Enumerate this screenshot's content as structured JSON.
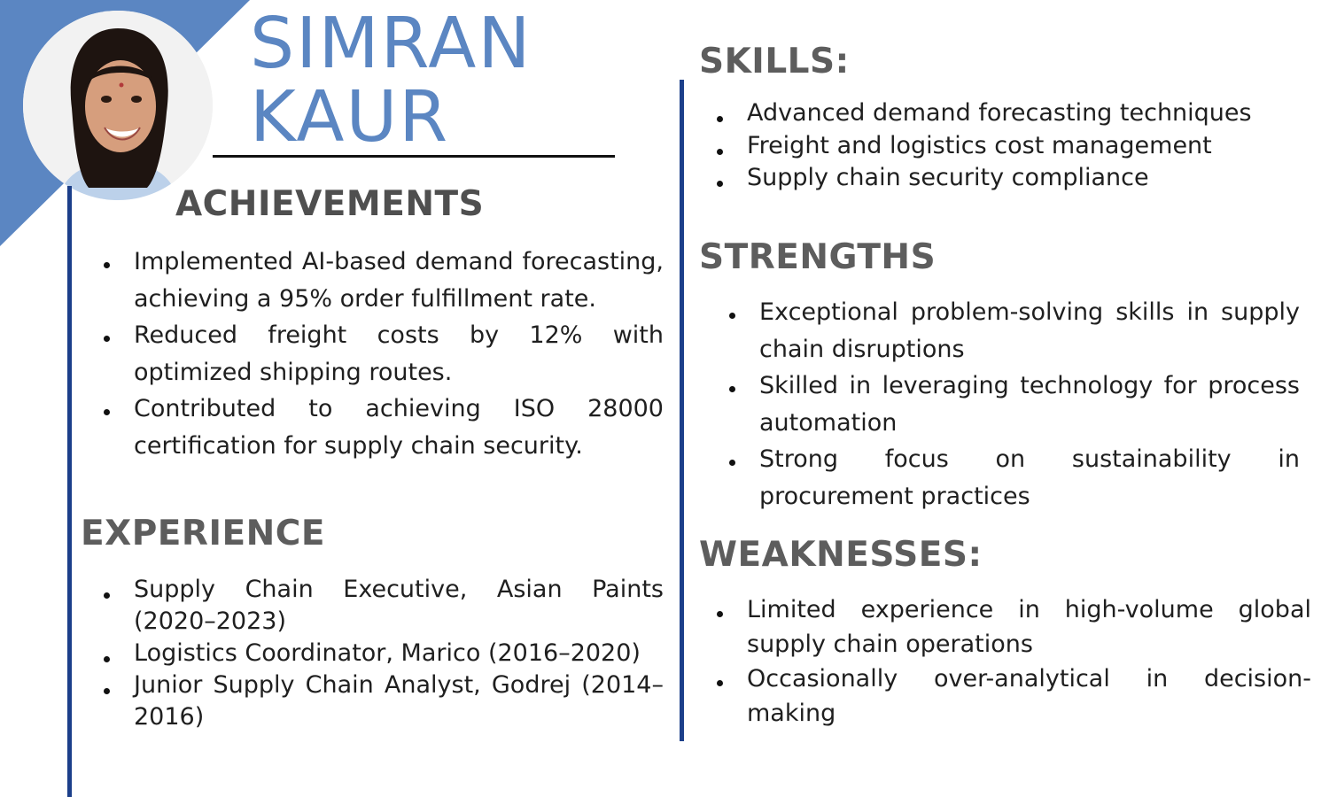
{
  "name": {
    "first": "SIMRAN",
    "last": "KAUR"
  },
  "achievements": {
    "title": "ACHIEVEMENTS",
    "items": [
      "Implemented AI-based demand forecasting, achieving a 95% order fulfillment rate.",
      "Reduced freight costs by 12% with optimized shipping routes.",
      "Contributed to achieving ISO 28000 certification for supply chain security."
    ]
  },
  "experience": {
    "title": "EXPERIENCE",
    "items": [
      "Supply Chain Executive, Asian Paints (2020–2023)",
      "Logistics Coordinator, Marico (2016–2020)",
      "Junior Supply Chain Analyst, Godrej (2014–2016)"
    ]
  },
  "skills": {
    "title": "SKILLS:",
    "items": [
      "Advanced demand forecasting techniques",
      "Freight and logistics cost management",
      "Supply chain security compliance"
    ]
  },
  "strengths": {
    "title": "STRENGTHS",
    "items": [
      "Exceptional problem-solving skills in supply chain disruptions",
      "Skilled in leveraging technology for process automation",
      "Strong focus on sustainability in procurement practices"
    ]
  },
  "weaknesses": {
    "title": "WEAKNESSES:",
    "items": [
      "Limited experience in high-volume global supply chain operations",
      "Occasionally over-analytical in decision-making"
    ]
  },
  "colors": {
    "accent_blue": "#5b86c2",
    "rule_navy": "#1c3f8a",
    "heading_gray": "#5d5d5d"
  }
}
